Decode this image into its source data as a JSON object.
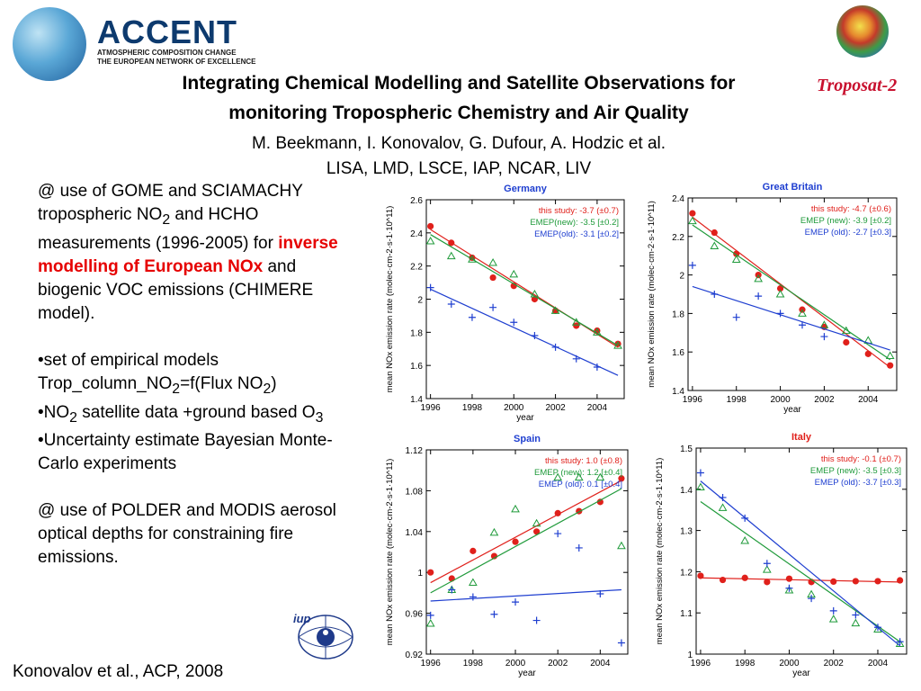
{
  "header": {
    "logo_name": "ACCENT",
    "logo_line1": "ATMOSPHERIC COMPOSITION CHANGE",
    "logo_line2": "THE EUROPEAN NETWORK OF EXCELLENCE",
    "troposat": "Troposat-2"
  },
  "title_line1": "Integrating Chemical Modelling and Satellite Observations for",
  "title_line2": "monitoring Tropospheric Chemistry and Air Quality",
  "authors_line1": "M. Beekmann, I. Konovalov, G. Dufour, A. Hodzic  et al.",
  "authors_line2": "LISA, LMD, LSCE, IAP, NCAR, LIV",
  "left_text": {
    "p1_a": "@ use of GOME and SCIAMACHY tropospheric NO",
    "p1_b": "2",
    "p1_c": " and HCHO measurements (1996-2005) for ",
    "p1_red": "inverse modelling of European NOx",
    "p1_d": " and biogenic VOC emissions (CHIMERE model).",
    "b1_a": "•set of empirical models Trop_column_NO",
    "b1_b": "2",
    "b1_c": "=f(Flux NO",
    "b1_d": "2",
    "b1_e": ")",
    "b2_a": "•NO",
    "b2_b": "2",
    "b2_c": " satellite data +ground based O",
    "b2_d": "3",
    "b3": "•Uncertainty estimate Bayesian Monte-Carlo experiments",
    "p2": "@ use of POLDER and MODIS aerosol optical depths for constraining fire emissions."
  },
  "footer": "Konovalov et al., ACP, 2008",
  "colors": {
    "this_study": "#e0201b",
    "emep_new": "#1f9a3a",
    "emep_old": "#1f3fd0",
    "panel_title": "#1f3fd0",
    "italy_title": "#e0201b"
  },
  "chart_data": [
    {
      "type": "scatter",
      "title": "Germany",
      "xlabel": "year",
      "ylabel": "mean NOx emission rate (molec·cm-2·s-1·10^11)",
      "xlim": [
        1995.8,
        2005.3
      ],
      "ylim": [
        1.4,
        2.6
      ],
      "xticks": [
        1996,
        1998,
        2000,
        2002,
        2004
      ],
      "yticks": [
        1.4,
        1.6,
        1.8,
        2.0,
        2.2,
        2.4,
        2.6
      ],
      "ytick_labels": [
        "1.4",
        "1.6",
        "1.8",
        "2",
        "2.2",
        "2.4",
        "2.6"
      ],
      "legend": [
        "this study: -3.7 (±0.7)",
        "EMEP(new): -3.5 [±0.2]",
        "EMEP(old): -3.1 [±0.2]"
      ],
      "x": [
        1996,
        1997,
        1998,
        1999,
        2000,
        2001,
        2002,
        2003,
        2004,
        2005
      ],
      "series": [
        {
          "name": "this study",
          "marker": "dot",
          "values": [
            2.44,
            2.34,
            2.25,
            2.13,
            2.08,
            2.0,
            1.93,
            1.84,
            1.81,
            1.73
          ],
          "fit": [
            2.42,
            1.71
          ]
        },
        {
          "name": "EMEP(new)",
          "marker": "triangle",
          "values": [
            2.35,
            2.26,
            2.24,
            2.22,
            2.15,
            2.03,
            1.93,
            1.86,
            1.8,
            1.72
          ],
          "fit": [
            2.39,
            1.72
          ]
        },
        {
          "name": "EMEP(old)",
          "marker": "plus",
          "values": [
            2.07,
            1.97,
            1.89,
            1.95,
            1.86,
            1.78,
            1.71,
            1.64,
            1.59,
            null
          ],
          "fit": [
            2.06,
            1.54
          ]
        }
      ]
    },
    {
      "type": "scatter",
      "title": "Great Britain",
      "xlabel": "year",
      "ylabel": "mean NOx emission rate (molec·cm-2·s-1·10^11)",
      "xlim": [
        1995.8,
        2005.3
      ],
      "ylim": [
        1.4,
        2.4
      ],
      "xticks": [
        1996,
        1998,
        2000,
        2002,
        2004
      ],
      "yticks": [
        1.4,
        1.6,
        1.8,
        2.0,
        2.2,
        2.4
      ],
      "ytick_labels": [
        "1.4",
        "1.6",
        "1.8",
        "2",
        "2.2",
        "2.4"
      ],
      "legend": [
        "this study: -4.7 (±0.6)",
        "EMEP (new): -3.9 [±0.2]",
        "EMEP (old): -2.7 [±0.3]"
      ],
      "x": [
        1996,
        1997,
        1998,
        1999,
        2000,
        2001,
        2002,
        2003,
        2004,
        2005
      ],
      "series": [
        {
          "name": "this study",
          "marker": "dot",
          "values": [
            2.32,
            2.22,
            2.11,
            2.0,
            1.93,
            1.82,
            1.73,
            1.65,
            1.59,
            1.53
          ],
          "fit": [
            2.3,
            1.52
          ]
        },
        {
          "name": "EMEP (new)",
          "marker": "triangle",
          "values": [
            2.28,
            2.15,
            2.08,
            1.98,
            1.9,
            1.8,
            1.74,
            1.71,
            1.66,
            1.58
          ],
          "fit": [
            2.26,
            1.56
          ]
        },
        {
          "name": "EMEP (old)",
          "marker": "plus",
          "values": [
            2.05,
            1.9,
            1.78,
            1.89,
            1.8,
            1.74,
            1.68,
            null,
            null,
            null
          ],
          "fit": [
            1.94,
            1.61
          ]
        }
      ]
    },
    {
      "type": "scatter",
      "title": "Spain",
      "xlabel": "year",
      "ylabel": "mean NOx emission rate (molec·cm-2·s-1·10^11)",
      "xlim": [
        1995.8,
        2005.3
      ],
      "ylim": [
        0.92,
        1.12
      ],
      "xticks": [
        1996,
        1998,
        2000,
        2002,
        2004
      ],
      "yticks": [
        0.92,
        0.96,
        1.0,
        1.04,
        1.08,
        1.12
      ],
      "ytick_labels": [
        "0.92",
        "0.96",
        "1",
        "1.04",
        "1.08",
        "1.12"
      ],
      "legend": [
        "this study: 1.0 (±0.8)",
        "EMEP (new): 1.2 [±0.4]",
        "EMEP (old): 0.1 [±0.4]"
      ],
      "x": [
        1996,
        1997,
        1998,
        1999,
        2000,
        2001,
        2002,
        2003,
        2004,
        2005
      ],
      "series": [
        {
          "name": "this study",
          "marker": "dot",
          "values": [
            1.0,
            0.994,
            1.021,
            1.016,
            1.03,
            1.04,
            1.058,
            1.06,
            1.069,
            1.092
          ],
          "fit": [
            0.99,
            1.09
          ]
        },
        {
          "name": "EMEP (new)",
          "marker": "triangle",
          "values": [
            0.95,
            0.983,
            0.99,
            1.039,
            1.062,
            1.048,
            1.093,
            1.093,
            1.093,
            1.026
          ],
          "fit": [
            0.98,
            1.082
          ]
        },
        {
          "name": "EMEP (old)",
          "marker": "plus",
          "values": [
            0.958,
            0.983,
            0.976,
            0.959,
            0.971,
            0.953,
            1.038,
            1.024,
            0.979,
            0.931
          ],
          "fit": [
            0.972,
            0.983
          ]
        }
      ]
    },
    {
      "type": "scatter",
      "title": "Italy",
      "xlabel": "year",
      "ylabel": "mean NOx emission rate (molec·cm-2·s-1·10^11)",
      "xlim": [
        1995.8,
        2005.3
      ],
      "ylim": [
        1.0,
        1.5
      ],
      "xticks": [
        1996,
        1998,
        2000,
        2002,
        2004
      ],
      "yticks": [
        1.0,
        1.1,
        1.2,
        1.3,
        1.4,
        1.5
      ],
      "ytick_labels": [
        "1",
        "1.1",
        "1.2",
        "1.3",
        "1.4",
        "1.5"
      ],
      "legend": [
        "this study: -0.1 (±0.7)",
        "EMEP (new): -3.5 [±0.3]",
        "EMEP (old): -3.7 [±0.3]"
      ],
      "x": [
        1996,
        1997,
        1998,
        1999,
        2000,
        2001,
        2002,
        2003,
        2004,
        2005
      ],
      "series": [
        {
          "name": "this study",
          "marker": "dot",
          "values": [
            1.19,
            1.18,
            1.185,
            1.175,
            1.183,
            1.175,
            1.176,
            1.177,
            1.177,
            1.179
          ],
          "fit": [
            1.185,
            1.175
          ]
        },
        {
          "name": "EMEP (new)",
          "marker": "triangle",
          "values": [
            1.405,
            1.355,
            1.275,
            1.205,
            1.155,
            1.145,
            1.085,
            1.075,
            1.06,
            1.025
          ],
          "fit": [
            1.37,
            1.03
          ]
        },
        {
          "name": "EMEP (old)",
          "marker": "plus",
          "values": [
            1.44,
            1.38,
            1.33,
            1.22,
            1.16,
            1.135,
            1.105,
            1.095,
            1.065,
            1.03
          ],
          "fit": [
            1.42,
            1.02
          ]
        }
      ]
    }
  ]
}
